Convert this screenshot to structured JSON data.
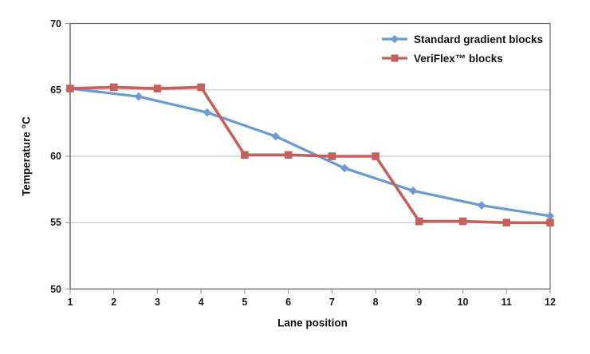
{
  "chart_data": {
    "type": "line",
    "title": "",
    "xlabel": "Lane position",
    "ylabel": "Temperature °C",
    "xlim": [
      1,
      12
    ],
    "ylim": [
      50,
      70
    ],
    "x_ticks": [
      1,
      2,
      3,
      4,
      5,
      6,
      7,
      8,
      9,
      10,
      11,
      12
    ],
    "y_ticks": [
      50,
      55,
      60,
      65,
      70
    ],
    "grid": "horizontal-major",
    "legend_position": "inside-top-right",
    "colors": {
      "gridline": "#c9c9c9",
      "axis": "#6f6f6f",
      "border": "#6f6f6f",
      "tick": "#9e9e9e",
      "text": "#1a1a1a",
      "background": "#ffffff"
    },
    "series": [
      {
        "name": "Standard gradient blocks",
        "color": "#6d9bd1",
        "marker": "diamond",
        "x": [
          1,
          2.57,
          4.14,
          5.71,
          7.29,
          8.86,
          10.43,
          12
        ],
        "y": [
          65.1,
          64.5,
          63.3,
          61.5,
          59.1,
          57.4,
          56.3,
          55.5
        ]
      },
      {
        "name": "VeriFlex™ blocks",
        "color": "#c5615c",
        "marker": "square",
        "x": [
          1,
          2,
          3,
          4,
          5,
          6,
          7,
          8,
          9,
          10,
          11,
          12
        ],
        "y": [
          65.1,
          65.2,
          65.1,
          65.2,
          60.1,
          60.1,
          60.0,
          60.0,
          55.1,
          55.1,
          55.0,
          55.0
        ]
      }
    ]
  }
}
